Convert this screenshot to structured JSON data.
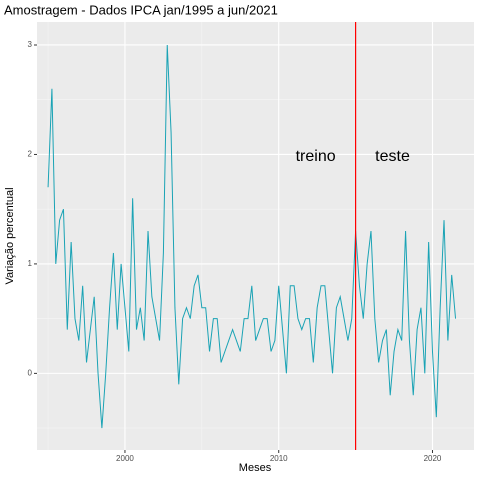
{
  "chart_data": {
    "type": "line",
    "title": "Amostragem - Dados IPCA jan/1995 a jun/2021",
    "xlabel": "Meses",
    "ylabel": "Variação percentual",
    "x": [
      1995,
      1995.25,
      1995.5,
      1995.75,
      1996,
      1996.25,
      1996.5,
      1996.75,
      1997,
      1997.25,
      1997.5,
      1997.75,
      1998,
      1998.25,
      1998.5,
      1998.75,
      1999,
      1999.25,
      1999.5,
      1999.75,
      2000,
      2000.25,
      2000.5,
      2000.75,
      2001,
      2001.25,
      2001.5,
      2001.75,
      2002,
      2002.25,
      2002.5,
      2002.75,
      2003,
      2003.25,
      2003.5,
      2003.75,
      2004,
      2004.25,
      2004.5,
      2004.75,
      2005,
      2005.25,
      2005.5,
      2005.75,
      2006,
      2006.25,
      2006.5,
      2006.75,
      2007,
      2007.25,
      2007.5,
      2007.75,
      2008,
      2008.25,
      2008.5,
      2008.75,
      2009,
      2009.25,
      2009.5,
      2009.75,
      2010,
      2010.25,
      2010.5,
      2010.75,
      2011,
      2011.25,
      2011.5,
      2011.75,
      2012,
      2012.25,
      2012.5,
      2012.75,
      2013,
      2013.25,
      2013.5,
      2013.75,
      2014,
      2014.25,
      2014.5,
      2014.75,
      2015,
      2015.25,
      2015.5,
      2015.75,
      2016,
      2016.25,
      2016.5,
      2016.75,
      2017,
      2017.25,
      2017.5,
      2017.75,
      2018,
      2018.25,
      2018.5,
      2018.75,
      2019,
      2019.25,
      2019.5,
      2019.75,
      2020,
      2020.25,
      2020.5,
      2020.75,
      2021,
      2021.25,
      2021.5
    ],
    "series": [
      {
        "name": "IPCA",
        "color": "#1aa3b5",
        "values": [
          1.7,
          2.6,
          1.0,
          1.4,
          1.5,
          0.4,
          1.2,
          0.5,
          0.3,
          0.8,
          0.1,
          0.4,
          0.7,
          0.0,
          -0.5,
          0.0,
          0.6,
          1.1,
          0.4,
          1.0,
          0.6,
          0.2,
          1.6,
          0.4,
          0.6,
          0.3,
          1.3,
          0.7,
          0.5,
          0.3,
          1.1,
          3.0,
          2.2,
          0.6,
          -0.1,
          0.5,
          0.6,
          0.5,
          0.8,
          0.9,
          0.6,
          0.6,
          0.2,
          0.5,
          0.5,
          0.1,
          0.2,
          0.3,
          0.4,
          0.3,
          0.2,
          0.5,
          0.5,
          0.8,
          0.3,
          0.4,
          0.5,
          0.5,
          0.2,
          0.3,
          0.8,
          0.4,
          0.0,
          0.8,
          0.8,
          0.5,
          0.4,
          0.5,
          0.5,
          0.1,
          0.6,
          0.8,
          0.8,
          0.4,
          0.0,
          0.6,
          0.7,
          0.5,
          0.3,
          0.5,
          1.3,
          0.8,
          0.5,
          1.0,
          1.3,
          0.5,
          0.1,
          0.3,
          0.4,
          -0.2,
          0.2,
          0.4,
          0.3,
          1.3,
          0.3,
          -0.2,
          0.4,
          0.6,
          0.0,
          1.2,
          0.2,
          -0.4,
          0.6,
          1.4,
          0.3,
          0.9,
          0.5
        ]
      }
    ],
    "xlim": [
      1994.28,
      2022.7
    ],
    "ylim": [
      -0.7,
      3.21
    ],
    "xticks": [
      2000,
      2010,
      2020
    ],
    "yticks": [
      0,
      1,
      2,
      3
    ],
    "grid": true,
    "vline": {
      "x": 2015,
      "color": "#ff0000"
    },
    "annotations": [
      {
        "text": "treino",
        "x": 2012.4,
        "y": 1.98
      },
      {
        "text": "teste",
        "x": 2017.4,
        "y": 1.98
      }
    ]
  }
}
